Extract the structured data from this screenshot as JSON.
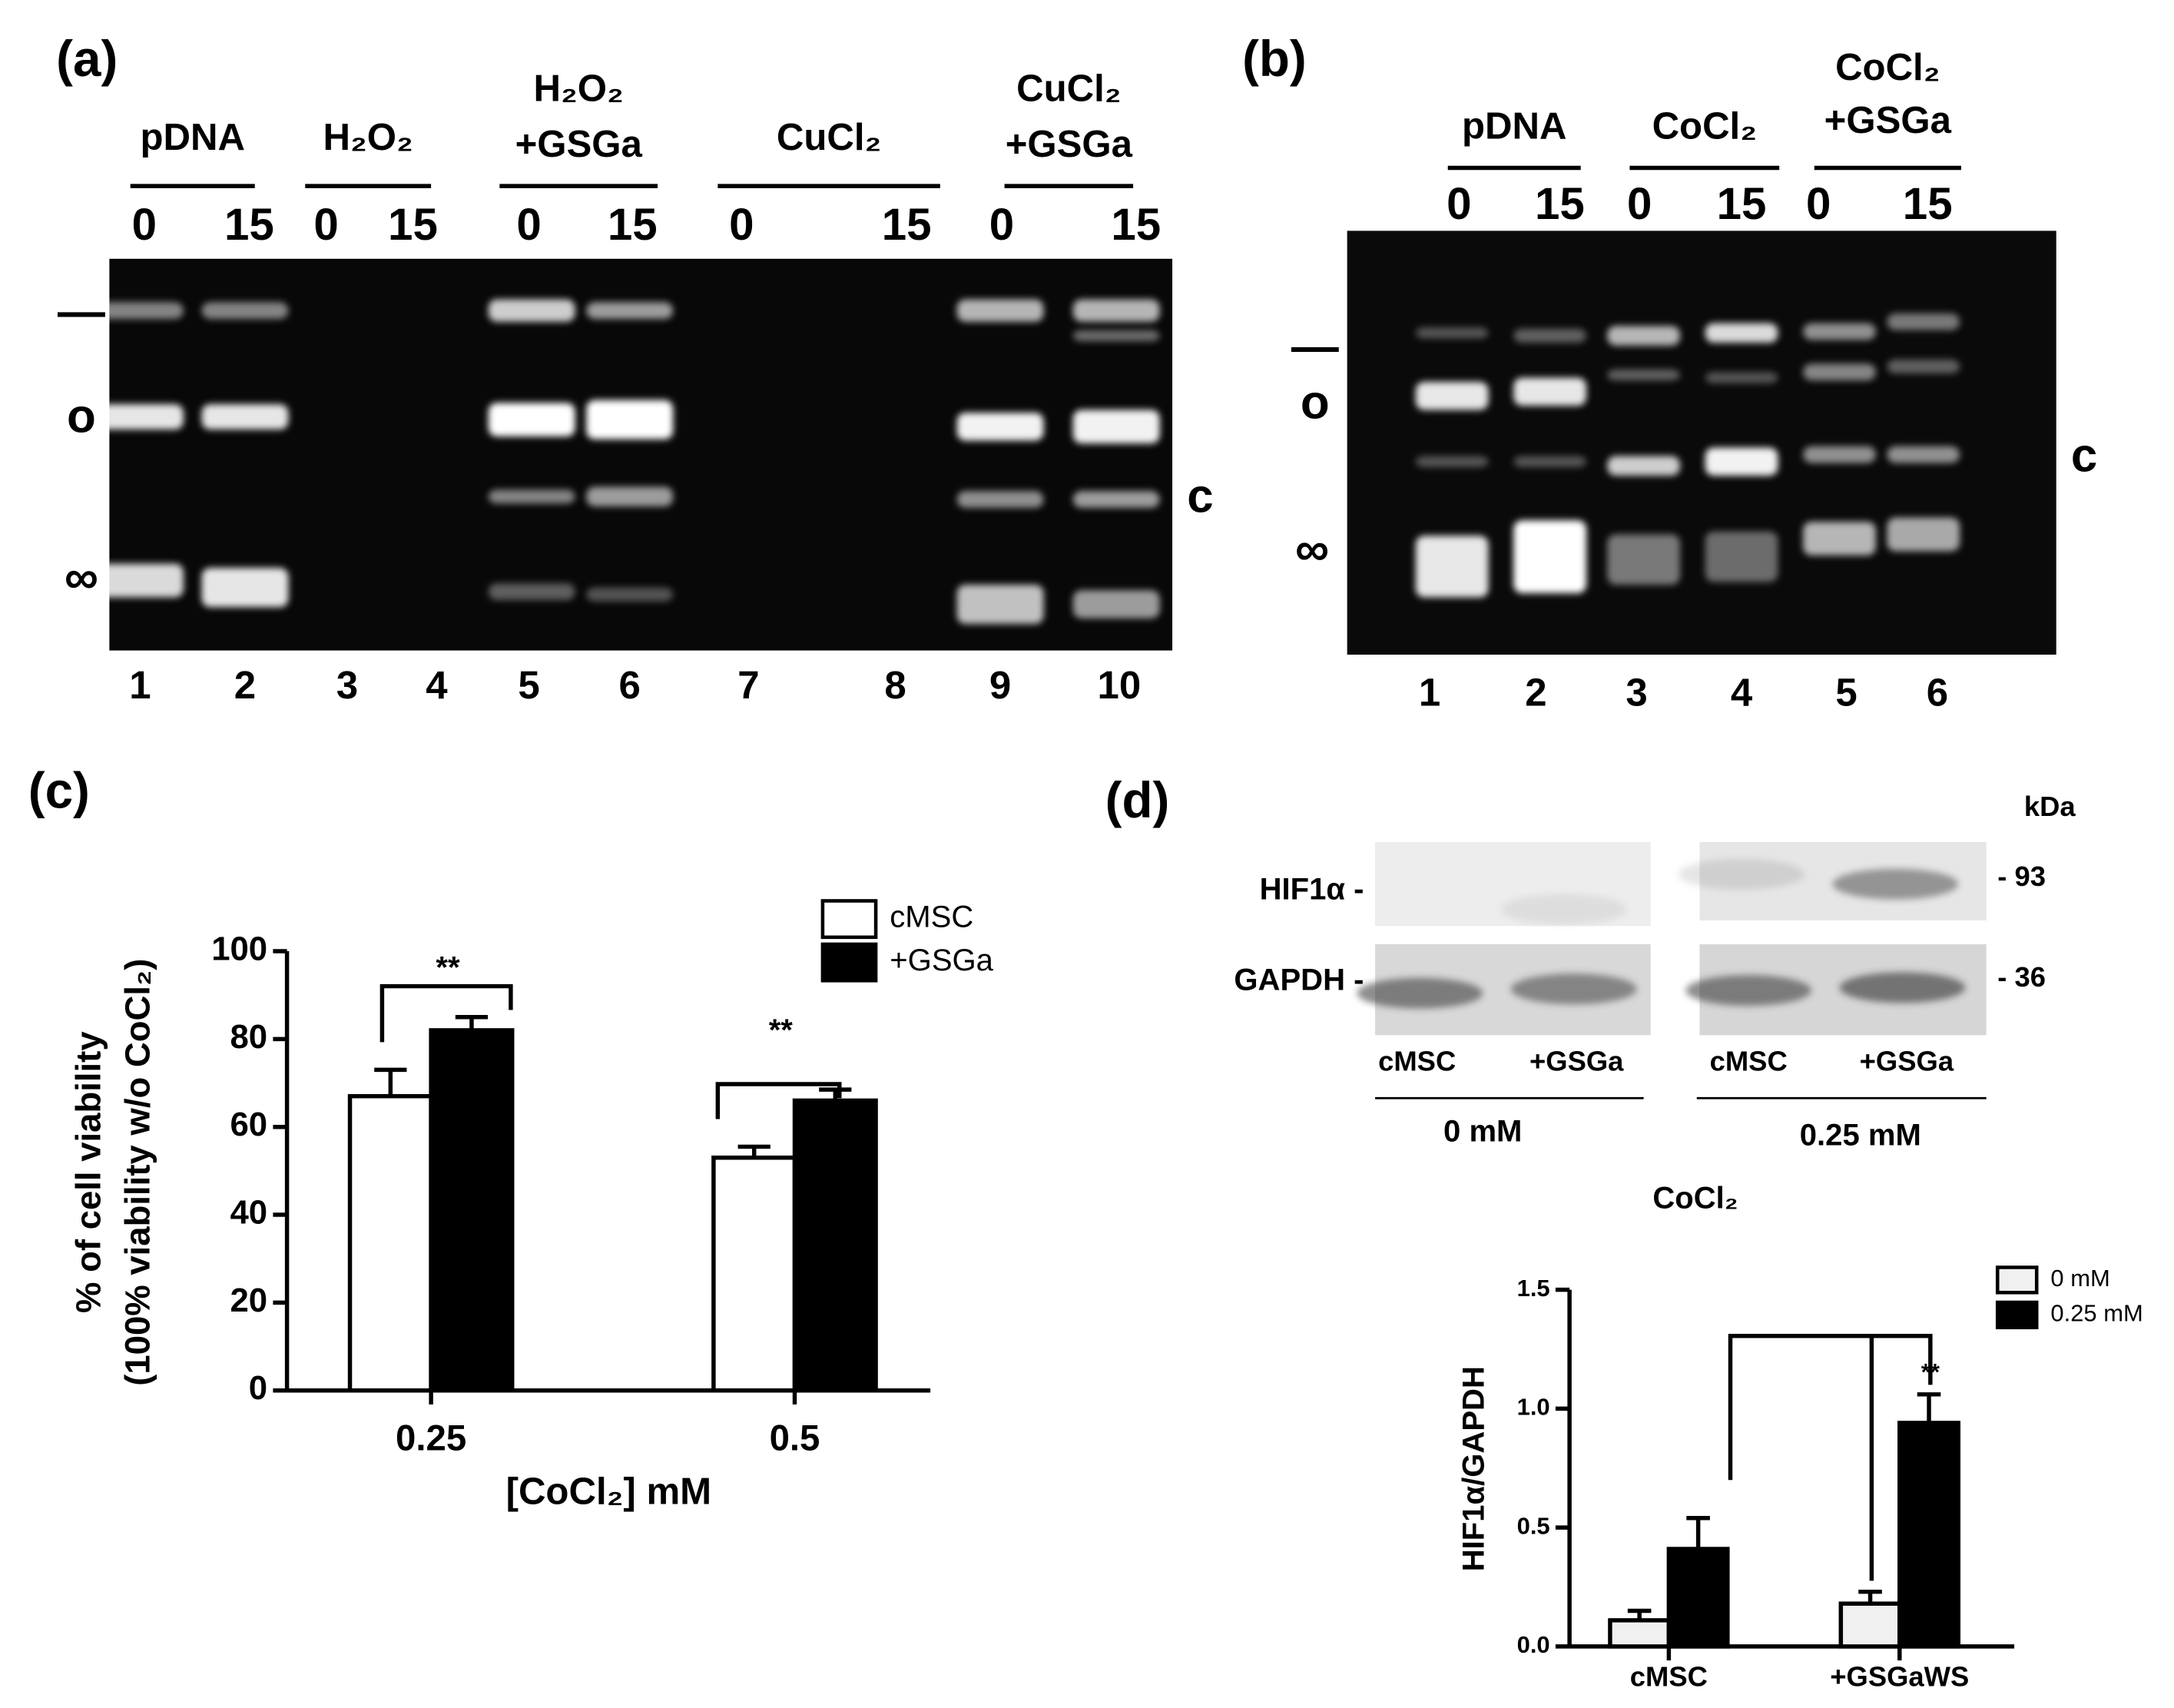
{
  "gel_a": {
    "panel": "(a)",
    "groups": [
      {
        "label": [
          "pDNA"
        ],
        "times": [
          "0",
          "15"
        ]
      },
      {
        "label": [
          "H₂O₂"
        ],
        "times": [
          "0",
          "15"
        ]
      },
      {
        "label": [
          "H₂O₂",
          "+GSGa"
        ],
        "times": [
          "0",
          "15"
        ]
      },
      {
        "label": [
          "CuCl₂"
        ],
        "times": [
          "0",
          "15"
        ]
      },
      {
        "label": [
          "CuCl₂",
          "+GSGa"
        ],
        "times": [
          "0",
          "15"
        ]
      }
    ],
    "lanes": [
      "1",
      "2",
      "3",
      "4",
      "5",
      "6",
      "7",
      "8",
      "9",
      "10"
    ],
    "markers": [
      "—",
      "o",
      "∞",
      "c"
    ]
  },
  "gel_b": {
    "panel": "(b)",
    "groups": [
      {
        "label": [
          "pDNA"
        ],
        "times": [
          "0",
          "15"
        ]
      },
      {
        "label": [
          "CoCl₂"
        ],
        "times": [
          "0",
          "15"
        ]
      },
      {
        "label": [
          "CoCl₂",
          "+GSGa"
        ],
        "times": [
          "0",
          "15"
        ]
      }
    ],
    "lanes": [
      "1",
      "2",
      "3",
      "4",
      "5",
      "6"
    ],
    "markers": [
      "—",
      "o",
      "∞",
      "c"
    ]
  },
  "blot": {
    "panel": "(d)",
    "unit": "kDa",
    "rows": [
      "HIF1α  -",
      "GAPDH  -"
    ],
    "sizes": [
      "- 93",
      "- 36"
    ],
    "lanes": [
      "cMSC",
      "+GSGa",
      "cMSC",
      "+GSGa"
    ],
    "concentrations": [
      "0 mM",
      "0.25 mM"
    ],
    "treatment": "CoCl₂"
  },
  "chart_data": [
    {
      "type": "bar",
      "panel": "(c)",
      "ylabel": [
        "% of cell viability",
        "(100% viability w/o CoCl₂)"
      ],
      "xlabel": "[CoCl₂] mM",
      "categories": [
        "0.25",
        "0.5"
      ],
      "series": [
        {
          "name": "cMSC",
          "color": "#ffffff",
          "values": [
            67,
            53
          ],
          "errors": [
            6,
            2.5
          ]
        },
        {
          "name": "+GSGa",
          "color": "#000000",
          "values": [
            82,
            66
          ],
          "errors": [
            3,
            2.5
          ]
        }
      ],
      "ylim": [
        0,
        100
      ],
      "yticks": [
        0,
        20,
        40,
        60,
        80,
        100
      ],
      "annotations": [
        "**",
        "**"
      ],
      "legend": "upper right"
    },
    {
      "type": "bar",
      "ylabel": [
        "HIF1α/GAPDH"
      ],
      "categories": [
        "cMSC",
        "+GSGaWS"
      ],
      "series": [
        {
          "name": "0 mM",
          "color": "#f0f0f0",
          "values": [
            0.11,
            0.18
          ],
          "errors": [
            0.04,
            0.05
          ]
        },
        {
          "name": "0.25 mM",
          "color": "#000000",
          "values": [
            0.41,
            0.94
          ],
          "errors": [
            0.13,
            0.12
          ]
        }
      ],
      "ylim": [
        0,
        1.5
      ],
      "yticks": [
        {
          "value": 0,
          "label": "0.0"
        },
        0.5,
        {
          "value": 1,
          "label": "1.0"
        },
        1.5
      ],
      "annotations": [
        "**"
      ],
      "legend": "upper right"
    }
  ]
}
